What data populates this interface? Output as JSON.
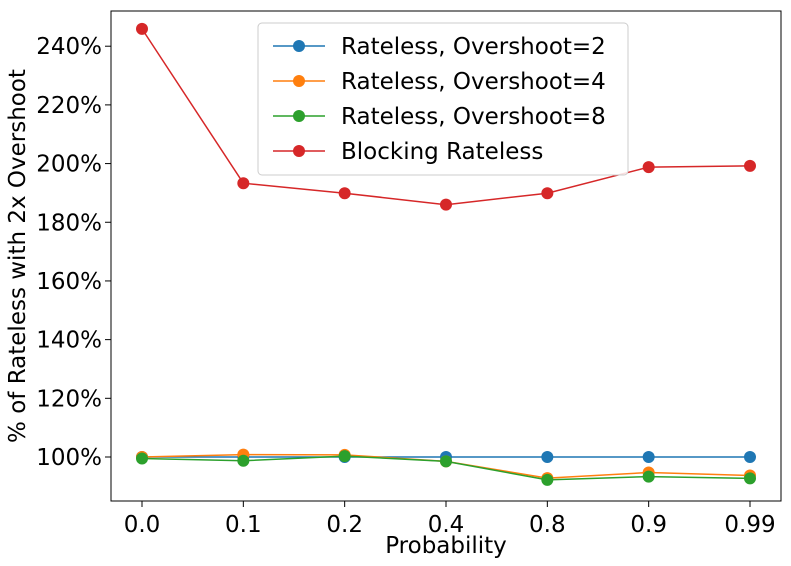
{
  "chart_data": {
    "type": "line",
    "title": "",
    "xlabel": "Probability",
    "ylabel": "% of Rateless with 2x Overshoot",
    "categories": [
      "0.0",
      "0.1",
      "0.2",
      "0.4",
      "0.8",
      "0.9",
      "0.99"
    ],
    "ylim": [
      85,
      252
    ],
    "yticks": [
      100,
      120,
      140,
      160,
      180,
      200,
      220,
      240
    ],
    "ytick_labels": [
      "100%",
      "120%",
      "140%",
      "160%",
      "180%",
      "200%",
      "220%",
      "240%"
    ],
    "grid": false,
    "legend_position": "top-center",
    "series": [
      {
        "name": "Rateless, Overshoot=2",
        "color": "#1f77b4",
        "values": [
          100,
          100,
          100,
          100,
          100,
          100,
          100
        ]
      },
      {
        "name": "Rateless, Overshoot=4",
        "color": "#ff7f0e",
        "values": [
          100,
          100.8,
          100.7,
          98.5,
          92.8,
          94.7,
          93.7
        ]
      },
      {
        "name": "Rateless, Overshoot=8",
        "color": "#2ca02c",
        "values": [
          99.5,
          98.7,
          100.3,
          98.5,
          92.2,
          93.3,
          92.7
        ]
      },
      {
        "name": "Blocking Rateless",
        "color": "#d62728",
        "values": [
          245.9,
          193.3,
          189.9,
          186,
          189.9,
          198.8,
          199.2
        ]
      }
    ]
  }
}
